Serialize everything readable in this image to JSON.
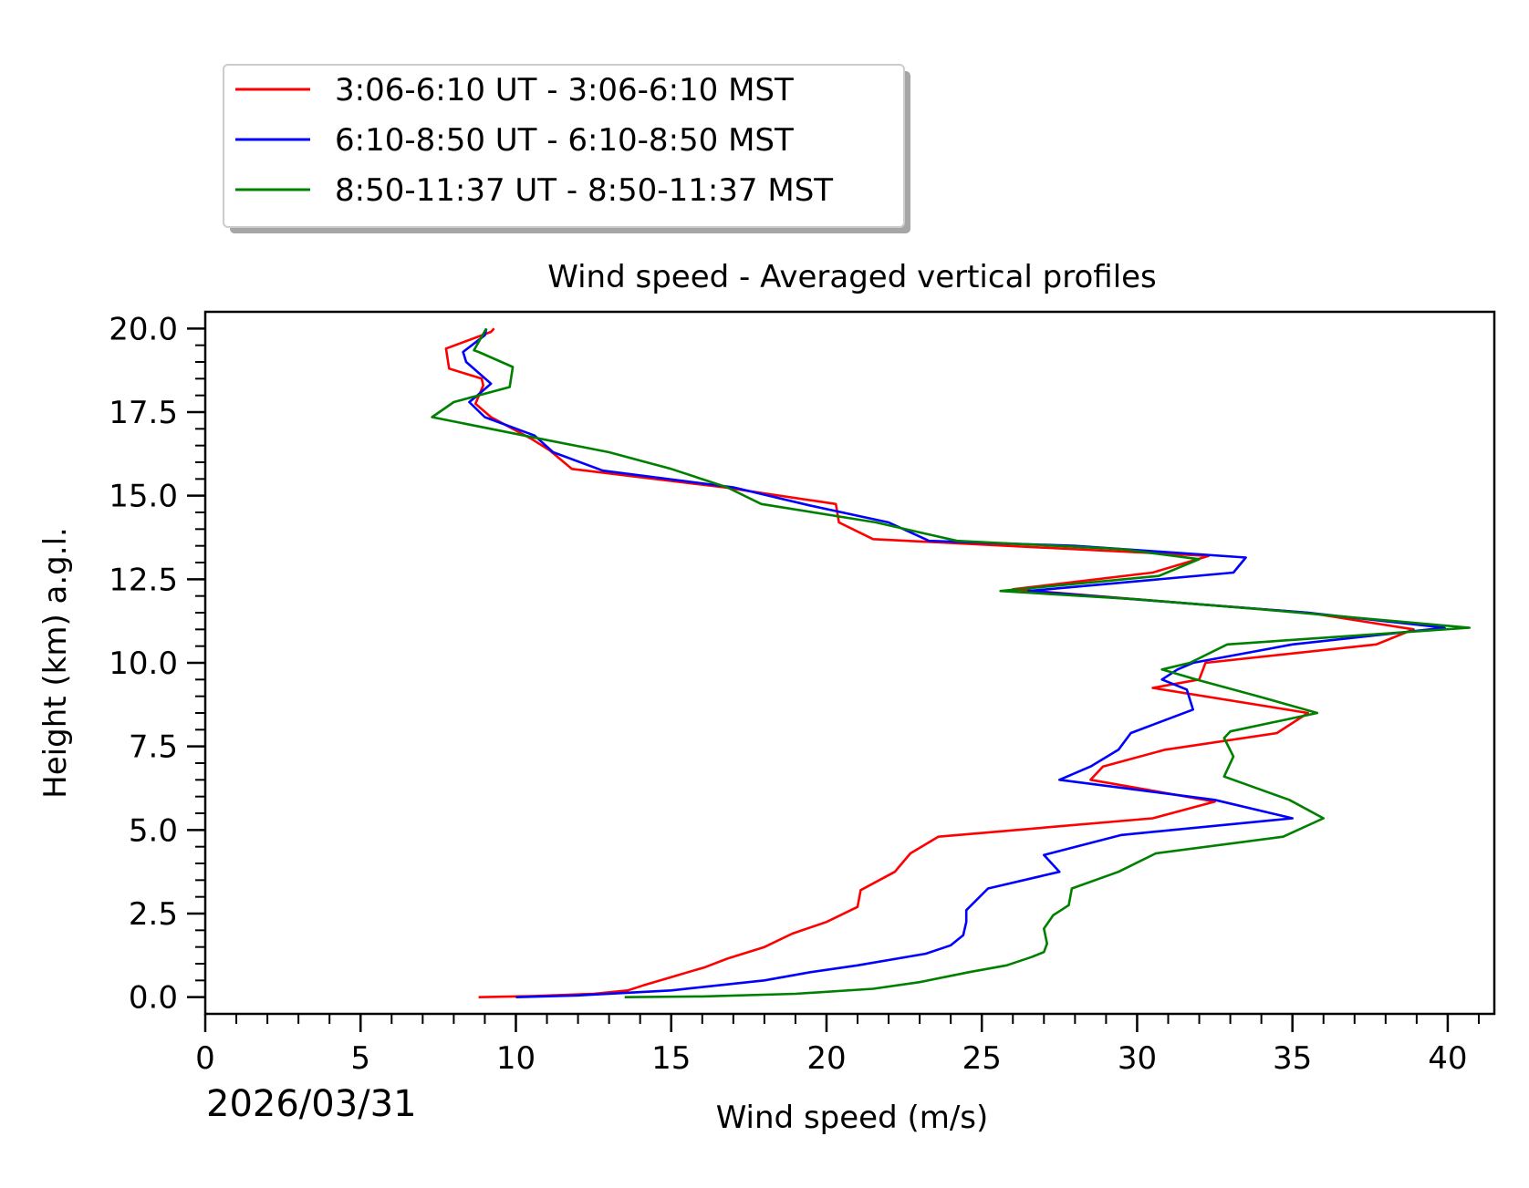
{
  "chart_data": {
    "type": "line",
    "title": "Wind speed - Averaged vertical profiles",
    "xlabel": "Wind speed (m/s)",
    "ylabel": "Height (km) a.g.l.",
    "date_label": "2026/03/31",
    "xlim": [
      0,
      41.5
    ],
    "ylim": [
      -0.5,
      20.5
    ],
    "x_ticks": [
      0,
      5,
      10,
      15,
      20,
      25,
      30,
      35,
      40
    ],
    "x_tick_labels": [
      "0",
      "5",
      "10",
      "15",
      "20",
      "25",
      "30",
      "35",
      "40"
    ],
    "y_ticks": [
      0,
      2.5,
      5,
      7.5,
      10,
      12.5,
      15,
      17.5,
      20
    ],
    "y_tick_labels": [
      "0.0",
      "2.5",
      "5.0",
      "7.5",
      "10.0",
      "12.5",
      "15.0",
      "17.5",
      "20.0"
    ],
    "legend_position": "above-left",
    "series": [
      {
        "name": "3:06-6:10 UT - 3:06-6:10 MST",
        "color": "#ff0000",
        "points": [
          [
            8.8,
            0.0
          ],
          [
            10.5,
            0.03
          ],
          [
            12.5,
            0.1
          ],
          [
            13.6,
            0.2
          ],
          [
            14.1,
            0.35
          ],
          [
            15.0,
            0.6
          ],
          [
            16.1,
            0.9
          ],
          [
            16.8,
            1.15
          ],
          [
            18.0,
            1.5
          ],
          [
            18.9,
            1.9
          ],
          [
            20.0,
            2.25
          ],
          [
            21.0,
            2.7
          ],
          [
            21.1,
            3.2
          ],
          [
            22.2,
            3.75
          ],
          [
            22.7,
            4.3
          ],
          [
            23.6,
            4.8
          ],
          [
            30.5,
            5.35
          ],
          [
            32.5,
            5.85
          ],
          [
            28.5,
            6.5
          ],
          [
            28.9,
            6.9
          ],
          [
            30.9,
            7.4
          ],
          [
            34.5,
            7.9
          ],
          [
            35.5,
            8.5
          ],
          [
            30.5,
            9.25
          ],
          [
            32.0,
            9.5
          ],
          [
            32.2,
            10.0
          ],
          [
            37.7,
            10.55
          ],
          [
            38.9,
            11.0
          ],
          [
            35.5,
            11.5
          ],
          [
            32.0,
            11.75
          ],
          [
            26.0,
            12.2
          ],
          [
            30.5,
            12.7
          ],
          [
            32.3,
            13.2
          ],
          [
            21.5,
            13.7
          ],
          [
            20.4,
            14.2
          ],
          [
            20.3,
            14.75
          ],
          [
            16.7,
            15.25
          ],
          [
            11.8,
            15.8
          ],
          [
            11.1,
            16.35
          ],
          [
            10.5,
            16.7
          ],
          [
            9.2,
            17.35
          ],
          [
            8.7,
            17.75
          ],
          [
            8.95,
            18.3
          ],
          [
            8.9,
            18.5
          ],
          [
            7.85,
            18.8
          ],
          [
            7.75,
            19.4
          ],
          [
            9.2,
            19.9
          ],
          [
            9.3,
            20.0
          ]
        ]
      },
      {
        "name": "6:10-8:50 UT - 6:10-8:50 MST",
        "color": "#0000ff",
        "points": [
          [
            10.0,
            0.0
          ],
          [
            12.0,
            0.05
          ],
          [
            15.0,
            0.2
          ],
          [
            18.0,
            0.5
          ],
          [
            19.5,
            0.75
          ],
          [
            21.0,
            0.95
          ],
          [
            23.2,
            1.3
          ],
          [
            24.0,
            1.55
          ],
          [
            24.4,
            1.85
          ],
          [
            24.5,
            2.25
          ],
          [
            24.5,
            2.6
          ],
          [
            25.2,
            3.25
          ],
          [
            27.5,
            3.75
          ],
          [
            27.0,
            4.25
          ],
          [
            29.5,
            4.85
          ],
          [
            35.0,
            5.35
          ],
          [
            32.5,
            5.9
          ],
          [
            27.5,
            6.5
          ],
          [
            28.5,
            6.9
          ],
          [
            29.4,
            7.4
          ],
          [
            29.8,
            7.9
          ],
          [
            31.8,
            8.6
          ],
          [
            31.6,
            9.2
          ],
          [
            30.8,
            9.5
          ],
          [
            31.3,
            9.8
          ],
          [
            31.8,
            10.0
          ],
          [
            35.0,
            10.55
          ],
          [
            39.9,
            11.05
          ],
          [
            35.5,
            11.5
          ],
          [
            32.0,
            11.75
          ],
          [
            26.5,
            12.15
          ],
          [
            33.1,
            12.7
          ],
          [
            33.5,
            13.15
          ],
          [
            28.0,
            13.5
          ],
          [
            23.3,
            13.65
          ],
          [
            22.0,
            14.2
          ],
          [
            19.5,
            14.7
          ],
          [
            17.0,
            15.25
          ],
          [
            12.8,
            15.75
          ],
          [
            11.2,
            16.3
          ],
          [
            10.6,
            16.8
          ],
          [
            9.0,
            17.35
          ],
          [
            8.5,
            17.8
          ],
          [
            8.7,
            17.95
          ],
          [
            9.2,
            18.35
          ],
          [
            8.4,
            19.0
          ],
          [
            8.3,
            19.3
          ],
          [
            9.0,
            19.8
          ],
          [
            9.05,
            20.0
          ]
        ]
      },
      {
        "name": "8:50-11:37 UT - 8:50-11:37 MST",
        "color": "#008000",
        "points": [
          [
            13.5,
            0.0
          ],
          [
            16.0,
            0.02
          ],
          [
            19.0,
            0.1
          ],
          [
            21.5,
            0.25
          ],
          [
            23.0,
            0.45
          ],
          [
            24.6,
            0.75
          ],
          [
            25.8,
            0.95
          ],
          [
            26.6,
            1.2
          ],
          [
            27.0,
            1.35
          ],
          [
            27.1,
            1.6
          ],
          [
            27.0,
            2.05
          ],
          [
            27.3,
            2.45
          ],
          [
            27.8,
            2.75
          ],
          [
            27.9,
            3.25
          ],
          [
            29.4,
            3.75
          ],
          [
            30.6,
            4.3
          ],
          [
            34.7,
            4.8
          ],
          [
            36.0,
            5.35
          ],
          [
            34.9,
            5.9
          ],
          [
            32.8,
            6.6
          ],
          [
            33.1,
            7.2
          ],
          [
            32.8,
            7.75
          ],
          [
            33.0,
            7.95
          ],
          [
            35.8,
            8.5
          ],
          [
            33.9,
            9.0
          ],
          [
            31.9,
            9.5
          ],
          [
            30.8,
            9.8
          ],
          [
            31.7,
            10.0
          ],
          [
            32.9,
            10.55
          ],
          [
            40.7,
            11.05
          ],
          [
            34.0,
            11.6
          ],
          [
            30.0,
            11.9
          ],
          [
            25.6,
            12.15
          ],
          [
            30.7,
            12.6
          ],
          [
            32.0,
            13.1
          ],
          [
            29.5,
            13.4
          ],
          [
            24.2,
            13.65
          ],
          [
            21.6,
            14.2
          ],
          [
            17.9,
            14.75
          ],
          [
            16.8,
            15.25
          ],
          [
            15.0,
            15.8
          ],
          [
            13.0,
            16.3
          ],
          [
            10.8,
            16.7
          ],
          [
            7.3,
            17.35
          ],
          [
            8.0,
            17.8
          ],
          [
            9.8,
            18.25
          ],
          [
            9.9,
            18.85
          ],
          [
            8.8,
            19.3
          ],
          [
            8.65,
            19.35
          ],
          [
            9.05,
            20.0
          ]
        ]
      }
    ]
  }
}
